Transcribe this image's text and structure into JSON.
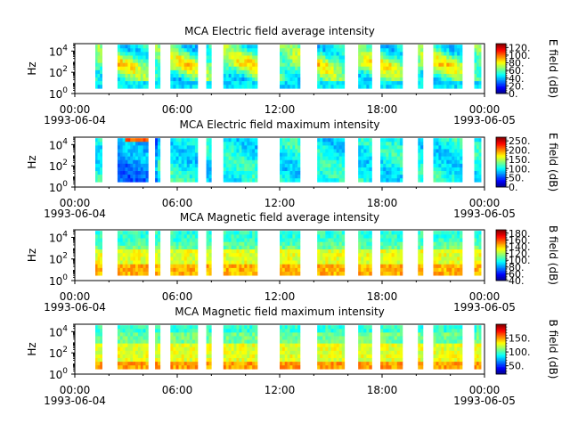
{
  "chart_data": [
    {
      "type": "heatmap",
      "title": "MCA  Electric field average intensity",
      "ylabel": "Hz",
      "yscale": "log",
      "ylim": [
        1,
        50000
      ],
      "yticks": [
        {
          "base": "10",
          "exp": "0"
        },
        {
          "base": "10",
          "exp": "2"
        },
        {
          "base": "10",
          "exp": "4"
        }
      ],
      "xlim": [
        "1993-06-04 00:00",
        "1993-06-05 00:00"
      ],
      "xticks": [
        "00:00",
        "06:00",
        "12:00",
        "18:00",
        "00:00"
      ],
      "xdates": [
        "1993-06-04",
        "1993-06-05"
      ],
      "colorbar": {
        "label": "E field (dB)",
        "colormap": "jet",
        "range": [
          0,
          130
        ],
        "ticks": [
          "0.",
          "20.",
          "40.",
          "60.",
          "80.",
          "100.",
          "120."
        ],
        "tick_values": [
          0,
          20,
          40,
          60,
          80,
          100,
          120
        ]
      },
      "data_segments_hours": [
        [
          1.2,
          1.6
        ],
        [
          2.5,
          4.3
        ],
        [
          4.7,
          5.0
        ],
        [
          5.6,
          7.2
        ],
        [
          7.7,
          8.0
        ],
        [
          8.7,
          10.7
        ],
        [
          12.0,
          13.2
        ],
        [
          14.2,
          15.8
        ],
        [
          16.6,
          17.4
        ],
        [
          17.9,
          19.2
        ],
        [
          20.1,
          20.4
        ],
        [
          21.0,
          22.7
        ],
        [
          23.4,
          23.8
        ]
      ]
    },
    {
      "type": "heatmap",
      "title": "MCA  Electric field maximum intensity",
      "ylabel": "Hz",
      "yscale": "log",
      "ylim": [
        1,
        50000
      ],
      "yticks": [
        {
          "base": "10",
          "exp": "0"
        },
        {
          "base": "10",
          "exp": "2"
        },
        {
          "base": "10",
          "exp": "4"
        }
      ],
      "xlim": [
        "1993-06-04 00:00",
        "1993-06-05 00:00"
      ],
      "xticks": [
        "00:00",
        "06:00",
        "12:00",
        "18:00",
        "00:00"
      ],
      "xdates": [
        "1993-06-04",
        "1993-06-05"
      ],
      "colorbar": {
        "label": "E field (dB)",
        "colormap": "jet",
        "range": [
          0,
          270
        ],
        "ticks": [
          "0.",
          "50.",
          "100.",
          "150.",
          "200.",
          "250."
        ],
        "tick_values": [
          0,
          50,
          100,
          150,
          200,
          250
        ]
      },
      "data_segments_hours": [
        [
          1.2,
          1.6
        ],
        [
          2.5,
          4.3
        ],
        [
          4.7,
          5.0
        ],
        [
          5.6,
          7.2
        ],
        [
          7.7,
          8.0
        ],
        [
          8.7,
          10.7
        ],
        [
          12.0,
          13.2
        ],
        [
          14.2,
          15.8
        ],
        [
          16.6,
          17.4
        ],
        [
          17.9,
          19.2
        ],
        [
          20.1,
          20.4
        ],
        [
          21.0,
          22.7
        ],
        [
          23.4,
          23.8
        ]
      ]
    },
    {
      "type": "heatmap",
      "title": "MCA  Magnetic field average intensity",
      "ylabel": "Hz",
      "yscale": "log",
      "ylim": [
        1,
        50000
      ],
      "yticks": [
        {
          "base": "10",
          "exp": "0"
        },
        {
          "base": "10",
          "exp": "2"
        },
        {
          "base": "10",
          "exp": "4"
        }
      ],
      "xlim": [
        "1993-06-04 00:00",
        "1993-06-05 00:00"
      ],
      "xticks": [
        "00:00",
        "06:00",
        "12:00",
        "18:00",
        "00:00"
      ],
      "xdates": [
        "1993-06-04",
        "1993-06-05"
      ],
      "colorbar": {
        "label": "B field (dB)",
        "colormap": "jet",
        "range": [
          40,
          190
        ],
        "ticks": [
          "40.",
          "60.",
          "80.",
          "100.",
          "120.",
          "140.",
          "160.",
          "180."
        ],
        "tick_values": [
          40,
          60,
          80,
          100,
          120,
          140,
          160,
          180
        ]
      },
      "data_segments_hours": [
        [
          1.2,
          1.6
        ],
        [
          2.5,
          4.3
        ],
        [
          4.7,
          5.0
        ],
        [
          5.6,
          7.2
        ],
        [
          7.7,
          8.0
        ],
        [
          8.7,
          10.7
        ],
        [
          12.0,
          13.2
        ],
        [
          14.2,
          15.8
        ],
        [
          16.6,
          17.4
        ],
        [
          17.9,
          19.2
        ],
        [
          20.1,
          20.4
        ],
        [
          21.0,
          22.7
        ],
        [
          23.4,
          23.8
        ]
      ]
    },
    {
      "type": "heatmap",
      "title": "MCA  Magnetic field maximum intensity",
      "ylabel": "Hz",
      "yscale": "log",
      "ylim": [
        1,
        50000
      ],
      "yticks": [
        {
          "base": "10",
          "exp": "0"
        },
        {
          "base": "10",
          "exp": "2"
        },
        {
          "base": "10",
          "exp": "4"
        }
      ],
      "xlim": [
        "1993-06-04 00:00",
        "1993-06-05 00:00"
      ],
      "xticks": [
        "00:00",
        "06:00",
        "12:00",
        "18:00",
        "00:00"
      ],
      "xdates": [
        "1993-06-04",
        "1993-06-05"
      ],
      "colorbar": {
        "label": "B field (dB)",
        "colormap": "jet",
        "range": [
          20,
          200
        ],
        "ticks": [
          "50.",
          "100.",
          "150."
        ],
        "tick_values": [
          50,
          100,
          150
        ]
      },
      "data_segments_hours": [
        [
          1.2,
          1.6
        ],
        [
          2.5,
          4.3
        ],
        [
          4.7,
          5.0
        ],
        [
          5.6,
          7.2
        ],
        [
          7.7,
          8.0
        ],
        [
          8.7,
          10.7
        ],
        [
          12.0,
          13.2
        ],
        [
          14.2,
          15.8
        ],
        [
          16.6,
          17.4
        ],
        [
          17.9,
          19.2
        ],
        [
          20.1,
          20.4
        ],
        [
          21.0,
          22.7
        ],
        [
          23.4,
          23.8
        ]
      ]
    }
  ]
}
